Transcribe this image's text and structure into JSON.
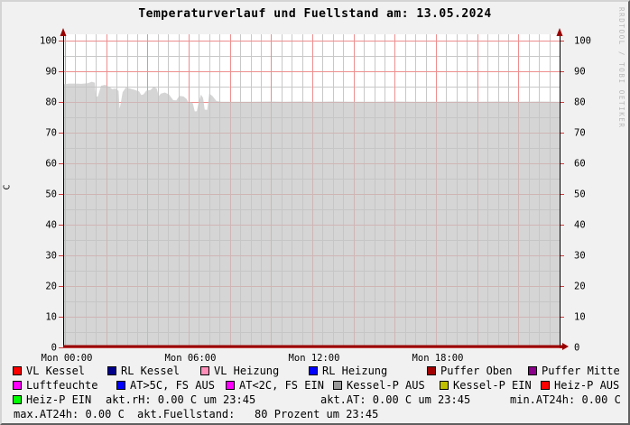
{
  "title": "Temperaturverlauf und Fuellstand am: 13.05.2024",
  "watermark": "RRDTOOL / TOBI OETIKER",
  "chart_data": {
    "type": "area",
    "title": "Temperaturverlauf und Fuellstand am: 13.05.2024",
    "xlabel": "",
    "ylabel": "C",
    "ylim": [
      0,
      100
    ],
    "xlim_hours": [
      0,
      24
    ],
    "yticks": [
      0,
      10,
      20,
      30,
      40,
      50,
      60,
      70,
      80,
      90,
      100
    ],
    "xticks": [
      {
        "h": 0,
        "label": "Mon 00:00"
      },
      {
        "h": 6,
        "label": "Mon 06:00"
      },
      {
        "h": 12,
        "label": "Mon 12:00"
      },
      {
        "h": 18,
        "label": "Mon 18:00"
      }
    ],
    "grid": {
      "on": true,
      "x_minor_hours": 0.5,
      "x_major_hours": 2,
      "y_minor": 5,
      "y_major": 10,
      "minor_color": "#c8c8c8",
      "major_color": "#ee8e8e",
      "tick_color": "#d23a3a"
    },
    "axis_color": "#000000",
    "arrow_color": "#990000",
    "baseline_color": "#990000",
    "canvas_color": "#ffffff",
    "legend_position": "bottom",
    "series": [
      {
        "name": "Fuellstand",
        "unit": "Prozent",
        "fill": "rgba(197,197,197,0.72)",
        "points": [
          [
            0,
            85.8
          ],
          [
            0.2,
            86.0
          ],
          [
            0.5,
            86.0
          ],
          [
            0.8,
            85.9
          ],
          [
            1.1,
            86.1
          ],
          [
            1.3,
            86.6
          ],
          [
            1.45,
            86.3
          ],
          [
            1.5,
            81.6
          ],
          [
            1.6,
            81.9
          ],
          [
            1.75,
            85.3
          ],
          [
            1.95,
            85.6
          ],
          [
            2.1,
            85.1
          ],
          [
            2.3,
            84.2
          ],
          [
            2.45,
            84.4
          ],
          [
            2.6,
            83.6
          ],
          [
            2.65,
            77.8
          ],
          [
            2.7,
            79.5
          ],
          [
            2.8,
            83.2
          ],
          [
            2.95,
            84.7
          ],
          [
            3.15,
            84.4
          ],
          [
            3.4,
            83.9
          ],
          [
            3.6,
            83.4
          ],
          [
            3.7,
            82.3
          ],
          [
            3.8,
            82.4
          ],
          [
            3.95,
            83.7
          ],
          [
            4.15,
            83.9
          ],
          [
            4.3,
            84.9
          ],
          [
            4.45,
            84.4
          ],
          [
            4.55,
            81.9
          ],
          [
            4.65,
            82.7
          ],
          [
            4.85,
            83.1
          ],
          [
            5.05,
            82.4
          ],
          [
            5.25,
            80.6
          ],
          [
            5.4,
            80.5
          ],
          [
            5.55,
            82.0
          ],
          [
            5.75,
            81.8
          ],
          [
            5.9,
            81.0
          ],
          [
            6.0,
            79.7
          ],
          [
            6.1,
            80.0
          ],
          [
            6.2,
            79.6
          ],
          [
            6.3,
            76.9
          ],
          [
            6.4,
            77.0
          ],
          [
            6.5,
            80.2
          ],
          [
            6.6,
            82.4
          ],
          [
            6.7,
            81.3
          ],
          [
            6.78,
            77.5
          ],
          [
            6.9,
            77.4
          ],
          [
            7.0,
            82.7
          ],
          [
            7.15,
            82.0
          ],
          [
            7.35,
            80.3
          ],
          [
            7.6,
            80.05
          ],
          [
            8,
            80.1
          ],
          [
            9,
            80.05
          ],
          [
            10,
            80.15
          ],
          [
            10.6,
            80.05
          ],
          [
            11.4,
            80.15
          ],
          [
            12.2,
            80.05
          ],
          [
            13,
            80.15
          ],
          [
            14,
            80.1
          ],
          [
            15,
            80.05
          ],
          [
            16,
            80.15
          ],
          [
            17,
            80.1
          ],
          [
            18,
            80.05
          ],
          [
            19,
            80.15
          ],
          [
            20,
            80.1
          ],
          [
            21,
            80.15
          ],
          [
            22,
            80.1
          ],
          [
            23,
            80.15
          ],
          [
            24,
            80.1
          ]
        ]
      }
    ]
  },
  "legend": {
    "items": [
      {
        "label": "VL Kessel",
        "color": "#ff0000"
      },
      {
        "label": "RL Kessel",
        "color": "#00008b"
      },
      {
        "label": "VL Heizung",
        "color": "#ff8fb8"
      },
      {
        "label": "RL Heizung",
        "color": "#0000ff"
      },
      {
        "label": "Puffer Oben",
        "color": "#a00000"
      },
      {
        "label": "Puffer Mitte",
        "color": "#8a008a"
      },
      {
        "label": "Luftfeuchte",
        "color": "#ff00ff"
      },
      {
        "label": "AT>5C, FS AUS",
        "color": "#0000ff"
      },
      {
        "label": "AT<2C, FS EIN",
        "color": "#ff00ff"
      },
      {
        "label": "Kessel-P AUS",
        "color": "#999999"
      },
      {
        "label": "Kessel-P EIN",
        "color": "#c0c000"
      },
      {
        "label": "Heiz-P AUS",
        "color": "#ff0000"
      },
      {
        "label": "Heiz-P EIN",
        "color": "#00ff00"
      }
    ]
  },
  "stats": {
    "akt_rh": "akt.rH: 0.00 C um 23:45",
    "akt_at": "akt.AT: 0.00 C um 23:45",
    "min_at24h": "min.AT24h: 0.00 C",
    "max_at24h": "max.AT24h: 0.00 C",
    "fuellstand": "akt.Fuellstand:   80 Prozent um 23:45"
  }
}
